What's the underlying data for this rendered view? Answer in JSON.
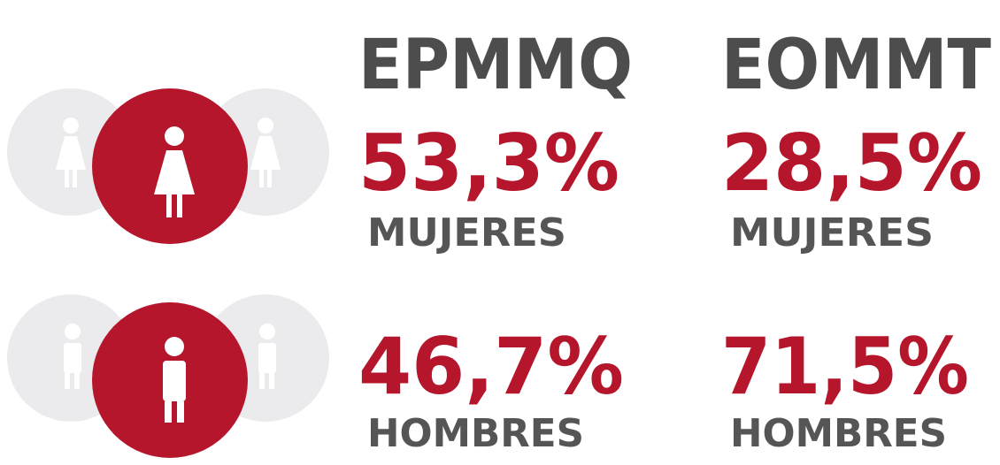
{
  "columns": [
    {
      "title": "EPMMQ",
      "rows": [
        {
          "value": "53,3%",
          "label": "MUJERES"
        },
        {
          "value": "46,7%",
          "label": "HOMBRES"
        }
      ]
    },
    {
      "title": "EOMMT",
      "rows": [
        {
          "value": "28,5%",
          "label": "MUJERES"
        },
        {
          "value": "71,5%",
          "label": "HOMBRES"
        }
      ]
    }
  ]
}
